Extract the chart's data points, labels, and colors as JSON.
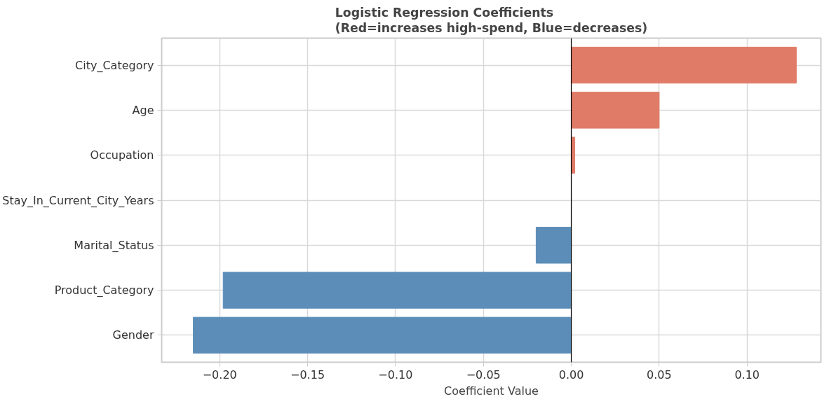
{
  "chart_data": {
    "type": "bar",
    "orientation": "horizontal",
    "title": "Logistic Regression Coefficients\n(Red=increases high-spend, Blue=decreases)",
    "xlabel": "Coefficient Value",
    "categories": [
      "City_Category",
      "Age",
      "Occupation",
      "Stay_In_Current_City_Years",
      "Marital_Status",
      "Product_Category",
      "Gender"
    ],
    "values": [
      0.128,
      0.05,
      0.002,
      0,
      -0.02,
      -0.198,
      -0.215
    ],
    "colors": [
      "#e07b67",
      "#e07b67",
      "#e07b67",
      "#5b8db8",
      "#5b8db8",
      "#5b8db8",
      "#5b8db8"
    ],
    "xlim": [
      -0.233,
      0.142
    ],
    "xticks": [
      {
        "value": -0.2,
        "label": "−0.20"
      },
      {
        "value": -0.15,
        "label": "−0.15"
      },
      {
        "value": -0.1,
        "label": "−0.10"
      },
      {
        "value": -0.05,
        "label": "−0.05"
      },
      {
        "value": 0,
        "label": "0.00"
      },
      {
        "value": 0.05,
        "label": "0.05"
      },
      {
        "value": 0.1,
        "label": "0.10"
      }
    ],
    "ref_lines": [
      {
        "axis": "x",
        "value": 0,
        "color": "#000000"
      }
    ],
    "grid": true
  }
}
